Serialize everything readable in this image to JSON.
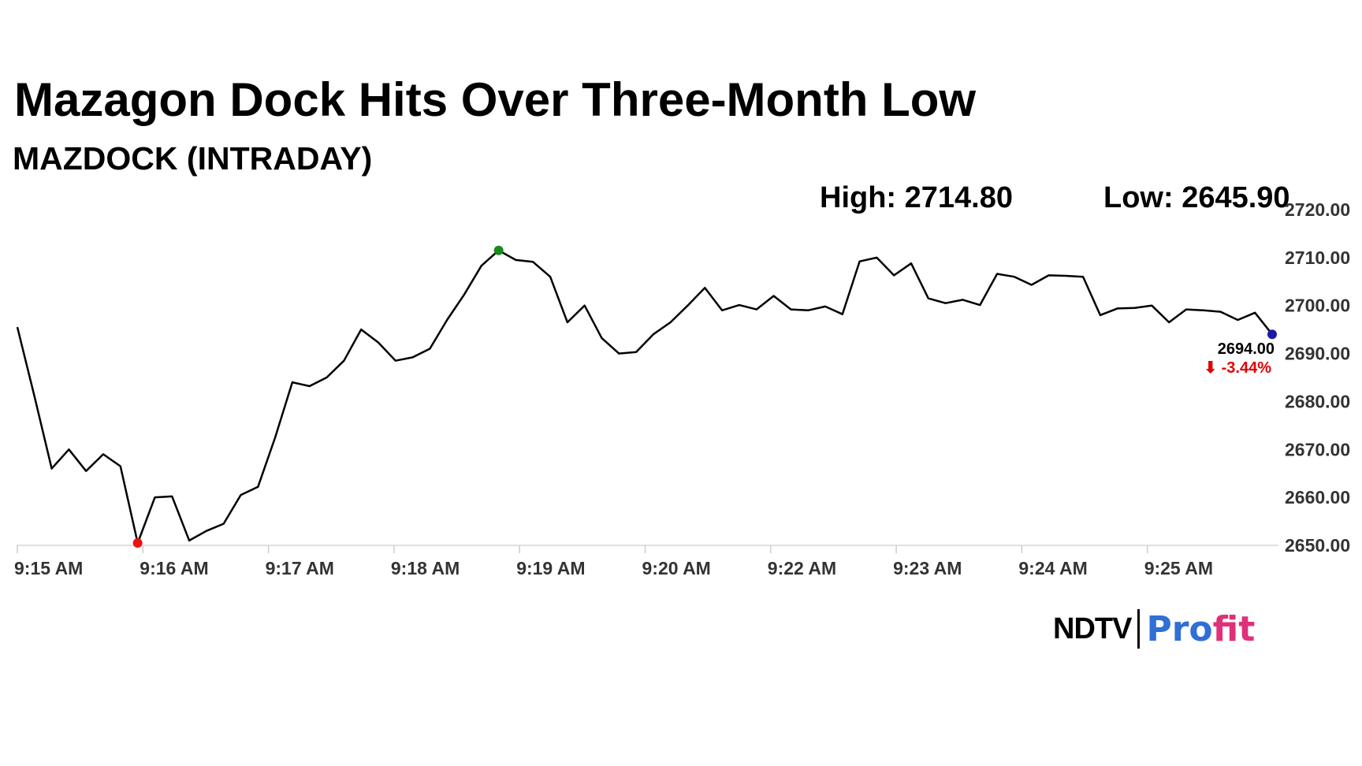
{
  "title": "Mazagon Dock Hits Over Three-Month Low",
  "subtitle": "MAZDOCK (INTRADAY)",
  "stats": {
    "high": "High: 2714.80",
    "low": "Low: 2645.90"
  },
  "brand": {
    "ndtv": "NDTV",
    "separator": "|",
    "profit": "Profit"
  },
  "colors": {
    "line": "#000000",
    "high_marker": "#1a8a1a",
    "low_marker": "#ee1111",
    "last_marker": "#1a1aaa",
    "change_negative": "#e00000",
    "brand_blue": "#2f6fd6",
    "brand_pink": "#e0307a"
  },
  "chart_data": {
    "type": "line",
    "title": "MAZDOCK (INTRADAY)",
    "ylim": [
      2650,
      2720
    ],
    "y_ticks": [
      "2720.00",
      "2710.00",
      "2700.00",
      "2690.00",
      "2680.00",
      "2670.00",
      "2660.00",
      "2650.00"
    ],
    "x_ticks": [
      "9:15 AM",
      "9:16 AM",
      "9:17 AM",
      "9:18 AM",
      "9:19 AM",
      "9:20 AM",
      "9:22 AM",
      "9:23 AM",
      "9:24 AM",
      "9:25 AM"
    ],
    "grid": false,
    "last_value": "2694.00",
    "last_change": "-3.44%",
    "values": [
      2695.5,
      2681,
      2666,
      2670,
      2665.5,
      2669,
      2666.5,
      2650.5,
      2660,
      2660.2,
      2651,
      2653,
      2654.5,
      2660.5,
      2662.2,
      2672.5,
      2684,
      2683.2,
      2685,
      2688.5,
      2695,
      2692.3,
      2688.5,
      2689.2,
      2691,
      2697,
      2702.3,
      2708.3,
      2711.5,
      2709.5,
      2709.1,
      2706,
      2696.5,
      2700,
      2693.2,
      2690,
      2690.3,
      2694,
      2696.5,
      2700,
      2703.7,
      2699,
      2700.1,
      2699.2,
      2702,
      2699.2,
      2699,
      2699.8,
      2698.2,
      2709.2,
      2710,
      2706.3,
      2708.8,
      2701.5,
      2700.5,
      2701.2,
      2700.1,
      2706.6,
      2706,
      2704.3,
      2706.3,
      2706.2,
      2706,
      2698,
      2699.4,
      2699.5,
      2700,
      2696.5,
      2699.2,
      2699,
      2698.7,
      2697,
      2698.5,
      2694
    ]
  }
}
